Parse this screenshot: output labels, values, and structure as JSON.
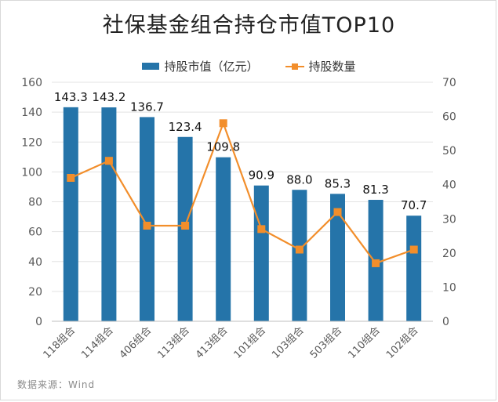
{
  "title": "社保基金组合持仓市值TOP10",
  "source": "数据来源：Wind",
  "legend": {
    "bar_label": "持股市值（亿元）",
    "line_label": "持股数量"
  },
  "colors": {
    "bar": "#2574a9",
    "line": "#f28e2b",
    "grid": "#e3e3e3",
    "axis_text": "#595959"
  },
  "chart_data": {
    "type": "bar+line",
    "categories": [
      "118组合",
      "114组合",
      "406组合",
      "113组合",
      "413组合",
      "101组合",
      "103组合",
      "503组合",
      "110组合",
      "102组合"
    ],
    "series": [
      {
        "name": "持股市值（亿元）",
        "type": "bar",
        "axis": "left",
        "values": [
          143.3,
          143.2,
          136.7,
          123.4,
          109.8,
          90.9,
          88.0,
          85.3,
          81.3,
          70.7
        ],
        "labels": [
          "143.3",
          "143.2",
          "136.7",
          "123.4",
          "109.8",
          "90.9",
          "88.0",
          "85.3",
          "81.3",
          "70.7"
        ]
      },
      {
        "name": "持股数量",
        "type": "line",
        "axis": "right",
        "values": [
          42,
          47,
          28,
          28,
          58,
          27,
          21,
          32,
          17,
          21
        ]
      }
    ],
    "y_left": {
      "min": 0,
      "max": 160,
      "ticks": [
        0,
        20,
        40,
        60,
        80,
        100,
        120,
        140,
        160
      ]
    },
    "y_right": {
      "min": 0,
      "max": 70,
      "ticks": [
        0,
        10,
        20,
        30,
        40,
        50,
        60,
        70
      ]
    },
    "grid": true,
    "legend_position": "top"
  }
}
